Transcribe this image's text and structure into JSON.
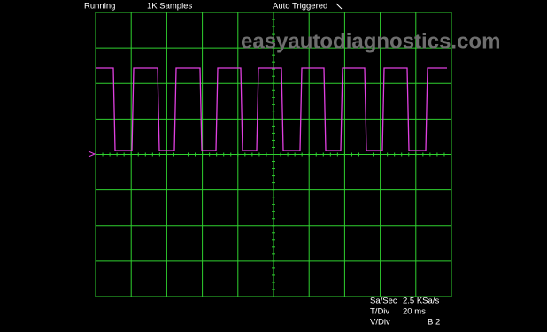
{
  "status": {
    "state": "Running",
    "samples": "1K Samples",
    "trigger": "Auto Triggered"
  },
  "watermark": "easyautodiagnostics.com",
  "settings": [
    {
      "label": "Sa/Sec",
      "value": "2.5 KSa/s"
    },
    {
      "label": "T/Div",
      "value": "20 ms"
    },
    {
      "label": "V/Div",
      "value": "B 2"
    }
  ]
}
